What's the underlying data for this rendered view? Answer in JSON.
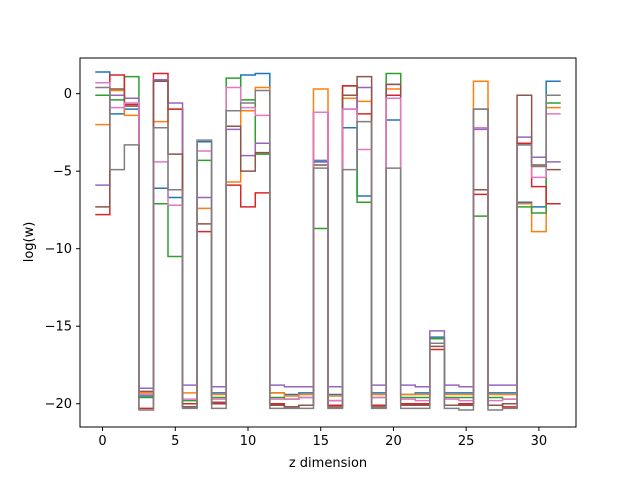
{
  "chart_data": {
    "type": "line",
    "drawstyle": "steps-mid",
    "title": "",
    "xlabel": "z dimension",
    "ylabel": "log(w)",
    "xlim": [
      -1.55,
      32.55
    ],
    "ylim": [
      -21.5,
      2.3
    ],
    "xticks": [
      0,
      5,
      10,
      15,
      20,
      25,
      30
    ],
    "yticks": [
      0,
      -5,
      -10,
      -15,
      -20
    ],
    "xtick_labels": [
      "0",
      "5",
      "10",
      "15",
      "20",
      "25",
      "30"
    ],
    "ytick_labels": [
      "0",
      "−5",
      "−10",
      "−15",
      "−20"
    ],
    "grid": false,
    "legend": false,
    "x": [
      0,
      1,
      2,
      3,
      4,
      5,
      6,
      7,
      8,
      9,
      10,
      11,
      12,
      13,
      14,
      15,
      16,
      17,
      18,
      19,
      20,
      21,
      22,
      23,
      24,
      25,
      26,
      27,
      28,
      29,
      30,
      31
    ],
    "series": [
      {
        "color": "#1f77b4",
        "values": [
          1.4,
          -1.3,
          -1.0,
          -19.5,
          -6.1,
          -6.7,
          -20.2,
          -3.1,
          -19.3,
          -1.1,
          1.2,
          1.3,
          -19.3,
          -19.4,
          -19.3,
          -4.4,
          -19.4,
          -2.2,
          -6.6,
          -19.3,
          -1.7,
          -19.4,
          -19.3,
          -15.7,
          -19.3,
          -19.3,
          -1.0,
          -19.3,
          -19.3,
          -7.0,
          -7.3,
          0.8
        ]
      },
      {
        "color": "#ff7f0e",
        "values": [
          -2.0,
          0.2,
          -1.4,
          -19.3,
          -1.8,
          -1.0,
          -19.3,
          -7.4,
          -19.4,
          -5.7,
          -1.1,
          0.4,
          -19.3,
          -19.5,
          -19.4,
          0.3,
          -19.5,
          -0.3,
          -0.5,
          -19.4,
          0.3,
          -19.4,
          -19.4,
          -15.8,
          -19.4,
          -19.4,
          0.8,
          -19.4,
          -19.4,
          -7.1,
          -8.9,
          -0.9
        ]
      },
      {
        "color": "#2ca02c",
        "values": [
          -0.1,
          -0.4,
          1.1,
          -19.6,
          -7.1,
          -10.5,
          -19.8,
          -4.3,
          -19.6,
          1.0,
          -0.4,
          -3.9,
          -19.6,
          -19.7,
          -19.6,
          -8.7,
          -19.8,
          0.5,
          -7.0,
          -19.6,
          1.3,
          -19.6,
          -19.6,
          -15.8,
          -19.6,
          -19.6,
          -7.9,
          -19.6,
          -19.7,
          -7.3,
          -7.7,
          -0.6
        ]
      },
      {
        "color": "#d62728",
        "values": [
          -7.8,
          1.2,
          -0.7,
          -20.3,
          1.3,
          -1.0,
          -20.0,
          -8.9,
          -20.0,
          -5.9,
          -7.3,
          -6.4,
          -20.0,
          -20.2,
          -20.1,
          -1.2,
          -20.1,
          0.5,
          -1.3,
          -20.1,
          -0.1,
          -20.0,
          -20.0,
          -16.5,
          -20.1,
          -20.0,
          -6.5,
          -20.1,
          -20.2,
          -3.2,
          -6.0,
          -7.1
        ]
      },
      {
        "color": "#9467bd",
        "values": [
          -5.9,
          -0.1,
          -0.3,
          -19.0,
          0.9,
          -0.6,
          -18.8,
          -6.7,
          -18.9,
          -2.3,
          -4.0,
          -3.2,
          -18.8,
          -18.9,
          -18.9,
          -4.3,
          -18.9,
          -1.0,
          0.4,
          -18.8,
          0.6,
          -18.8,
          -18.9,
          -15.3,
          -18.8,
          -18.9,
          -2.3,
          -18.8,
          -18.8,
          -2.8,
          -4.1,
          -4.4
        ]
      },
      {
        "color": "#8c564b",
        "values": [
          -7.3,
          0.3,
          -0.8,
          -19.2,
          0.8,
          -3.9,
          -20.2,
          -8.4,
          -19.9,
          -2.1,
          -5.0,
          -3.8,
          -20.1,
          -20.2,
          -20.1,
          -4.6,
          -20.2,
          -0.1,
          1.1,
          -20.2,
          0.6,
          -20.1,
          -20.1,
          -16.3,
          -20.1,
          -20.1,
          -6.2,
          -20.1,
          -20.0,
          -0.1,
          -4.6,
          -4.9
        ]
      },
      {
        "color": "#e377c2",
        "values": [
          0.7,
          -0.9,
          -0.6,
          -19.4,
          -4.4,
          -7.2,
          -19.7,
          -3.7,
          -19.7,
          0.4,
          -0.9,
          -1.4,
          -19.7,
          -19.7,
          -19.6,
          -1.2,
          -19.8,
          -1.0,
          -3.6,
          -19.6,
          -0.3,
          -19.7,
          -19.8,
          -16.1,
          -19.7,
          -19.8,
          -2.2,
          -19.8,
          -19.7,
          -3.3,
          -5.4,
          -1.3
        ]
      },
      {
        "color": "#7f7f7f",
        "values": [
          0.4,
          -4.9,
          -3.3,
          -20.4,
          -2.2,
          -6.2,
          -20.3,
          -3.0,
          -20.3,
          -1.1,
          -0.6,
          0.2,
          -20.3,
          -20.3,
          -20.3,
          -4.8,
          -20.3,
          -4.9,
          -1.8,
          -20.3,
          -4.8,
          -20.3,
          -20.3,
          -16.1,
          -20.3,
          -20.4,
          -1.0,
          -20.4,
          -20.3,
          -3.3,
          -4.7,
          -0.1
        ]
      }
    ]
  }
}
